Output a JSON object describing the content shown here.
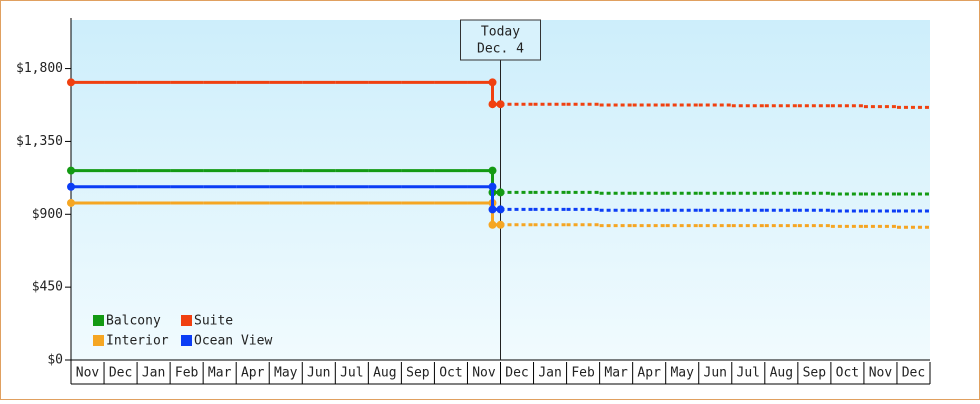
{
  "chart_data": {
    "type": "line",
    "categories": [
      "Nov",
      "Dec",
      "Jan",
      "Feb",
      "Mar",
      "Apr",
      "May",
      "Jun",
      "Jul",
      "Aug",
      "Sep",
      "Oct",
      "Nov",
      "Dec",
      "Jan",
      "Feb",
      "Mar",
      "Apr",
      "May",
      "Jun",
      "Jul",
      "Aug",
      "Sep",
      "Oct",
      "Nov",
      "Dec"
    ],
    "today_label": "Today",
    "today_date": "Dec. 4",
    "ylim": [
      0,
      2100
    ],
    "yticks": [
      {
        "value": 0,
        "label": "$0"
      },
      {
        "value": 450,
        "label": "$450"
      },
      {
        "value": 900,
        "label": "$900"
      },
      {
        "value": 1350,
        "label": "$1,350"
      },
      {
        "value": 1800,
        "label": "$1,800"
      }
    ],
    "legend": "lower left",
    "series": [
      {
        "name": "Balcony",
        "color": "#139a13",
        "values": [
          1170,
          1170,
          1170,
          1170,
          1170,
          1170,
          1170,
          1170,
          1170,
          1170,
          1170,
          1170,
          1170,
          null,
          null,
          null,
          null,
          null,
          null,
          null,
          null,
          null,
          null,
          null,
          null,
          null
        ],
        "forecast_values": [
          null,
          null,
          null,
          null,
          null,
          null,
          null,
          null,
          null,
          null,
          null,
          null,
          null,
          1035,
          1035,
          1035,
          1030,
          1030,
          1030,
          1030,
          1030,
          1030,
          1030,
          1025,
          1025,
          1025
        ]
      },
      {
        "name": "Suite",
        "color": "#f04010",
        "values": [
          1715,
          1715,
          1715,
          1715,
          1715,
          1715,
          1715,
          1715,
          1715,
          1715,
          1715,
          1715,
          1715,
          null,
          null,
          null,
          null,
          null,
          null,
          null,
          null,
          null,
          null,
          null,
          null,
          null
        ],
        "forecast_values": [
          null,
          null,
          null,
          null,
          null,
          null,
          null,
          null,
          null,
          null,
          null,
          null,
          null,
          1580,
          1580,
          1580,
          1575,
          1575,
          1575,
          1575,
          1570,
          1570,
          1570,
          1570,
          1565,
          1560
        ]
      },
      {
        "name": "Interior",
        "color": "#f5a623",
        "values": [
          970,
          970,
          970,
          970,
          970,
          970,
          970,
          970,
          970,
          970,
          970,
          970,
          970,
          null,
          null,
          null,
          null,
          null,
          null,
          null,
          null,
          null,
          null,
          null,
          null,
          null
        ],
        "forecast_values": [
          null,
          null,
          null,
          null,
          null,
          null,
          null,
          null,
          null,
          null,
          null,
          null,
          null,
          835,
          835,
          835,
          830,
          830,
          830,
          830,
          830,
          830,
          830,
          825,
          825,
          820
        ]
      },
      {
        "name": "Ocean View",
        "color": "#0b3df5",
        "values": [
          1070,
          1070,
          1070,
          1070,
          1070,
          1070,
          1070,
          1070,
          1070,
          1070,
          1070,
          1070,
          1070,
          null,
          null,
          null,
          null,
          null,
          null,
          null,
          null,
          null,
          null,
          null,
          null,
          null
        ],
        "forecast_values": [
          null,
          null,
          null,
          null,
          null,
          null,
          null,
          null,
          null,
          null,
          null,
          null,
          null,
          930,
          930,
          930,
          925,
          925,
          925,
          925,
          925,
          925,
          925,
          920,
          920,
          920
        ]
      }
    ]
  }
}
